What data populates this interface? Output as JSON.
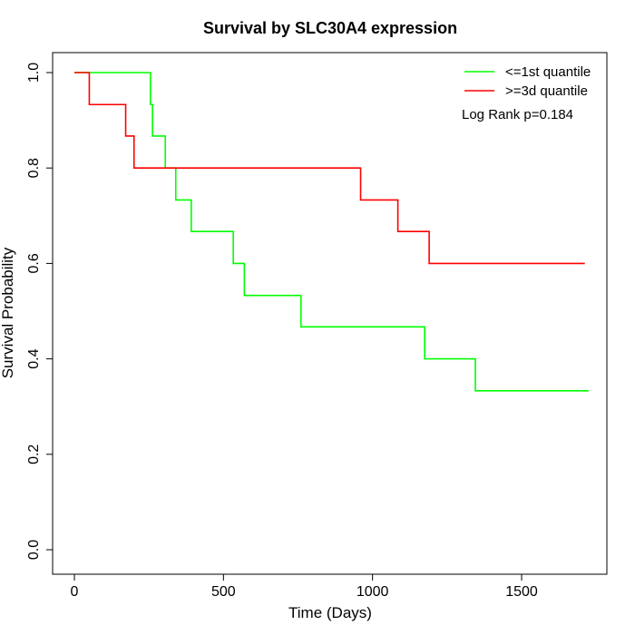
{
  "chart_data": {
    "type": "line",
    "step": true,
    "title": "Survival by SLC30A4 expression",
    "xlabel": "Time (Days)",
    "ylabel": "Survival Probability",
    "xlim": [
      0,
      1800
    ],
    "ylim": [
      0,
      1.0
    ],
    "xticks": [
      0,
      500,
      1000,
      1500
    ],
    "yticks": [
      0.0,
      0.2,
      0.4,
      0.6,
      0.8,
      1.0
    ],
    "xtick_labels": [
      "0",
      "500",
      "1000",
      "1500"
    ],
    "ytick_labels": [
      "0.0",
      "0.2",
      "0.4",
      "0.6",
      "0.8",
      "1.0"
    ],
    "grid": false,
    "legend_position": "top-right",
    "annotation": "Log Rank p=0.184",
    "series": [
      {
        "name": "<=1st quantile",
        "color": "#00ff00",
        "x": [
          0,
          255,
          262,
          305,
          340,
          392,
          533,
          570,
          760,
          1175,
          1345,
          1725
        ],
        "y": [
          1.0,
          0.933,
          0.867,
          0.8,
          0.733,
          0.667,
          0.6,
          0.533,
          0.467,
          0.4,
          0.333,
          0.333
        ]
      },
      {
        "name": ">=3d quantile",
        "color": "#ff0000",
        "x": [
          0,
          50,
          172,
          200,
          960,
          1085,
          1190,
          1712
        ],
        "y": [
          1.0,
          0.933,
          0.867,
          0.8,
          0.733,
          0.667,
          0.6,
          0.6
        ]
      }
    ]
  }
}
